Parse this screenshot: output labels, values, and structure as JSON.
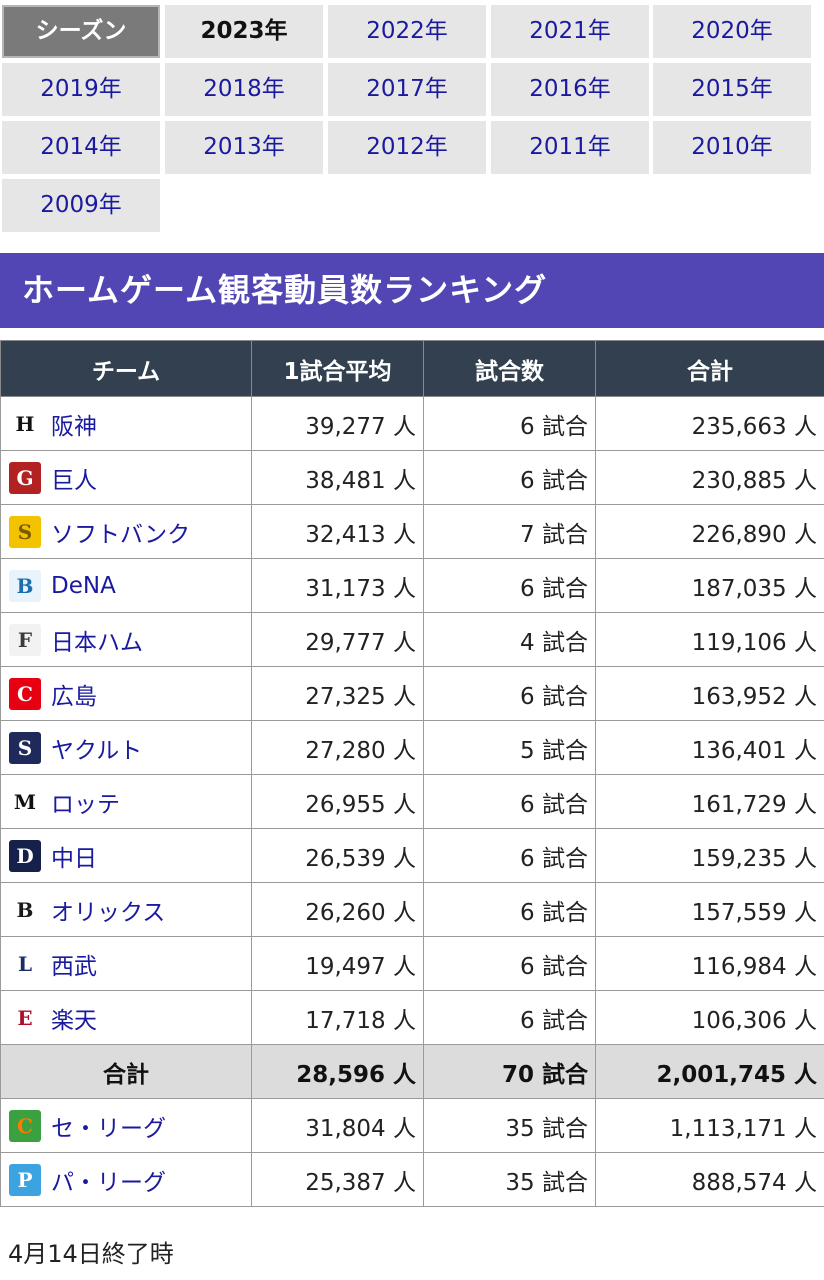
{
  "season_selector": {
    "label": "シーズン",
    "years": [
      "2023年",
      "2022年",
      "2021年",
      "2020年",
      "2019年",
      "2018年",
      "2017年",
      "2016年",
      "2015年",
      "2014年",
      "2013年",
      "2012年",
      "2011年",
      "2010年",
      "2009年"
    ],
    "current": "2023年"
  },
  "ranking": {
    "title": "ホームゲーム観客動員数ランキング",
    "headers": [
      "チーム",
      "1試合平均",
      "試合数",
      "合計"
    ],
    "rows": [
      {
        "team": "阪神",
        "avg": "39,277 人",
        "games": "6 試合",
        "total": "235,663 人",
        "logo": {
          "glyph": "H",
          "icon": "tigers-logo-icon",
          "bg": "#ffffff",
          "fg": "#111111"
        }
      },
      {
        "team": "巨人",
        "avg": "38,481 人",
        "games": "6 試合",
        "total": "230,885 人",
        "logo": {
          "glyph": "G",
          "icon": "giants-logo-icon",
          "bg": "#b22222",
          "fg": "#ffffff"
        }
      },
      {
        "team": "ソフトバンク",
        "avg": "32,413 人",
        "games": "7 試合",
        "total": "226,890 人",
        "logo": {
          "glyph": "S",
          "icon": "hawks-logo-icon",
          "bg": "#f3c300",
          "fg": "#7a5a00"
        }
      },
      {
        "team": "DeNA",
        "avg": "31,173 人",
        "games": "6 試合",
        "total": "187,035 人",
        "logo": {
          "glyph": "B",
          "icon": "baystars-logo-icon",
          "bg": "#e8f3fb",
          "fg": "#1a6fb0"
        }
      },
      {
        "team": "日本ハム",
        "avg": "29,777 人",
        "games": "4 試合",
        "total": "119,106 人",
        "logo": {
          "glyph": "F",
          "icon": "fighters-logo-icon",
          "bg": "#f2f2f2",
          "fg": "#3a3a3a"
        }
      },
      {
        "team": "広島",
        "avg": "27,325 人",
        "games": "6 試合",
        "total": "163,952 人",
        "logo": {
          "glyph": "C",
          "icon": "carp-logo-icon",
          "bg": "#e60012",
          "fg": "#ffffff"
        }
      },
      {
        "team": "ヤクルト",
        "avg": "27,280 人",
        "games": "5 試合",
        "total": "136,401 人",
        "logo": {
          "glyph": "S",
          "icon": "swallows-logo-icon",
          "bg": "#1f2a5a",
          "fg": "#ffffff"
        }
      },
      {
        "team": "ロッテ",
        "avg": "26,955 人",
        "games": "6 試合",
        "total": "161,729 人",
        "logo": {
          "glyph": "M",
          "icon": "marines-logo-icon",
          "bg": "#ffffff",
          "fg": "#111111"
        }
      },
      {
        "team": "中日",
        "avg": "26,539 人",
        "games": "6 試合",
        "total": "159,235 人",
        "logo": {
          "glyph": "D",
          "icon": "dragons-logo-icon",
          "bg": "#15214a",
          "fg": "#ffffff"
        }
      },
      {
        "team": "オリックス",
        "avg": "26,260 人",
        "games": "6 試合",
        "total": "157,559 人",
        "logo": {
          "glyph": "B",
          "icon": "buffaloes-logo-icon",
          "bg": "#ffffff",
          "fg": "#1a1a1a"
        }
      },
      {
        "team": "西武",
        "avg": "19,497 人",
        "games": "6 試合",
        "total": "116,984 人",
        "logo": {
          "glyph": "L",
          "icon": "lions-logo-icon",
          "bg": "#ffffff",
          "fg": "#1c2c6b"
        }
      },
      {
        "team": "楽天",
        "avg": "17,718 人",
        "games": "6 試合",
        "total": "106,306 人",
        "logo": {
          "glyph": "E",
          "icon": "eagles-logo-icon",
          "bg": "#ffffff",
          "fg": "#a8102a"
        }
      }
    ],
    "total_row": {
      "label": "合計",
      "avg": "28,596 人",
      "games": "70 試合",
      "total": "2,001,745 人"
    },
    "league_rows": [
      {
        "team": "セ・リーグ",
        "avg": "31,804 人",
        "games": "35 試合",
        "total": "1,113,171 人",
        "logo": {
          "glyph": "C",
          "icon": "central-league-logo-icon",
          "bg": "#3aa040",
          "fg": "#ff7a00"
        }
      },
      {
        "team": "パ・リーグ",
        "avg": "25,387 人",
        "games": "35 試合",
        "total": "888,574 人",
        "logo": {
          "glyph": "P",
          "icon": "pacific-league-logo-icon",
          "bg": "#3aa3e0",
          "fg": "#ffffff"
        }
      }
    ]
  },
  "footnote": "4月14日終了時"
}
